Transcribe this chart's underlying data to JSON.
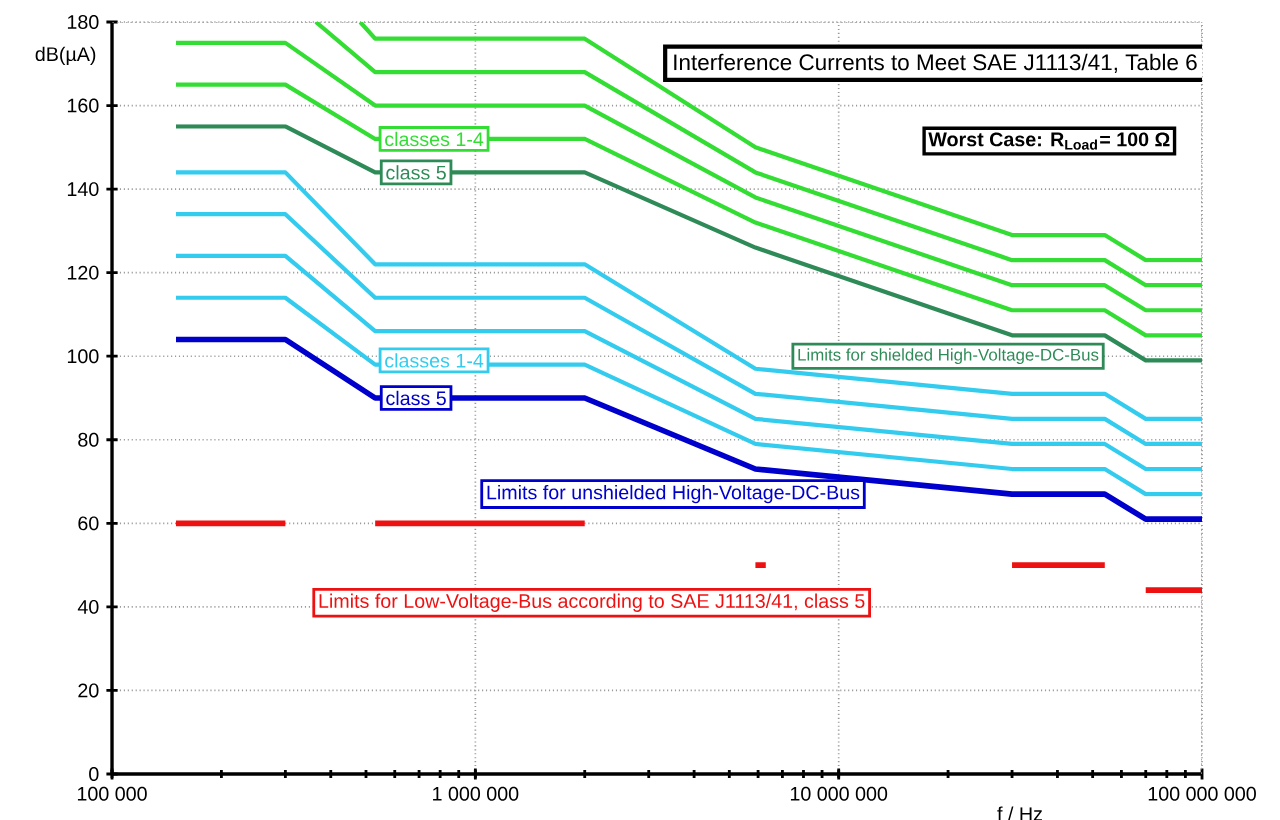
{
  "chart_data": {
    "type": "line",
    "title": "Interference Currents to Meet SAE J1113/41, Table 6",
    "xlabel": "f / Hz",
    "ylabel": "dB(µA)",
    "log": "x",
    "grid": true,
    "line_style": "solid",
    "xlim": [
      100000,
      100000000
    ],
    "ylim": [
      0,
      180
    ],
    "xticks": [
      {
        "value": 100000,
        "label": "100 000"
      },
      {
        "value": 1000000,
        "label": "1 000 000"
      },
      {
        "value": 10000000,
        "label": "10 000 000"
      },
      {
        "value": 100000000,
        "label": "100 000 000"
      }
    ],
    "yticks": [
      0,
      20,
      40,
      60,
      80,
      100,
      120,
      140,
      160,
      180
    ],
    "series": [
      {
        "color": "#33dd33",
        "x": [
          482000,
          530000,
          2000000,
          5900000,
          30000000,
          54000000,
          70000000,
          100000000
        ],
        "values": [
          180,
          176,
          176,
          150,
          129,
          129,
          123,
          123
        ]
      },
      {
        "color": "#33dd33",
        "x": [
          364000,
          530000,
          2000000,
          5900000,
          30000000,
          54000000,
          70000000,
          100000000
        ],
        "values": [
          180,
          168,
          168,
          144,
          123,
          123,
          117,
          117
        ]
      },
      {
        "color": "#33dd33",
        "x": [
          150000,
          300000,
          530000,
          2000000,
          5900000,
          30000000,
          54000000,
          70000000,
          100000000
        ],
        "values": [
          175,
          175,
          160,
          160,
          138,
          117,
          117,
          111,
          111
        ]
      },
      {
        "color": "#33dd33",
        "x": [
          150000,
          300000,
          530000,
          2000000,
          5900000,
          30000000,
          54000000,
          70000000,
          100000000
        ],
        "values": [
          165,
          165,
          152,
          152,
          132,
          111,
          111,
          105,
          105
        ]
      },
      {
        "color": "#2e8b57",
        "x": [
          150000,
          300000,
          530000,
          2000000,
          5900000,
          30000000,
          54000000,
          70000000,
          100000000
        ],
        "values": [
          155,
          155,
          144,
          144,
          126,
          105,
          105,
          99,
          99
        ]
      },
      {
        "color": "#33ccee",
        "x": [
          150000,
          300000,
          530000,
          2000000,
          5900000,
          30000000,
          54000000,
          70000000,
          100000000
        ],
        "values": [
          144,
          144,
          122,
          122,
          97,
          91,
          91,
          85,
          85
        ]
      },
      {
        "color": "#33ccee",
        "x": [
          150000,
          300000,
          530000,
          2000000,
          5900000,
          30000000,
          54000000,
          70000000,
          100000000
        ],
        "values": [
          134,
          134,
          114,
          114,
          91,
          85,
          85,
          79,
          79
        ]
      },
      {
        "color": "#33ccee",
        "x": [
          150000,
          300000,
          530000,
          2000000,
          5900000,
          30000000,
          54000000,
          70000000,
          100000000
        ],
        "values": [
          124,
          124,
          106,
          106,
          85,
          79,
          79,
          73,
          73
        ]
      },
      {
        "color": "#33ccee",
        "x": [
          150000,
          300000,
          530000,
          2000000,
          5900000,
          30000000,
          54000000,
          70000000,
          100000000
        ],
        "values": [
          114,
          114,
          98,
          98,
          79,
          73,
          73,
          67,
          67
        ]
      },
      {
        "color": "#0000cc",
        "x": [
          150000,
          300000,
          530000,
          2000000,
          5900000,
          30000000,
          54000000,
          70000000,
          100000000
        ],
        "values": [
          104,
          104,
          90,
          90,
          73,
          67,
          67,
          61,
          61
        ]
      },
      {
        "color": "#ee1111",
        "x": [
          150000,
          300000,
          400000,
          530000,
          2000000,
          4000000,
          5900000,
          6300000,
          10000000,
          30000000,
          54000000,
          60000000,
          70000000,
          100000000
        ],
        "values": [
          60,
          60,
          null,
          60,
          60,
          null,
          50,
          50,
          null,
          50,
          50,
          null,
          44,
          44
        ]
      }
    ],
    "annotations": [
      "classes 1-4",
      "class 5",
      "Limits for shielded High-Voltage-DC-Bus",
      "classes 1-4",
      "class 5",
      "Limits for unshielded High-Voltage-DC-Bus",
      "Limits for Low-Voltage-Bus according to SAE J1113/41, class 5",
      "Worst Case: R$_{Load}$= 100 Ω"
    ]
  }
}
